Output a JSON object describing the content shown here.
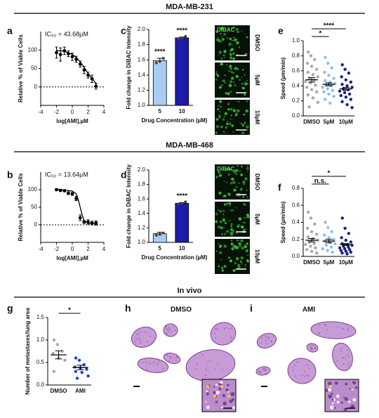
{
  "figure": {
    "sections": [
      "MDA-MB-231",
      "MDA-MB-468",
      "In vivo"
    ],
    "histology": [
      {
        "panel": "h",
        "title": "DMSO"
      },
      {
        "panel": "i",
        "title": "AMI"
      }
    ]
  },
  "chart_data": [
    {
      "panel": "a",
      "type": "dose",
      "annotation": "IC₅₀ = 43.68µM",
      "x_label": "log[AMI],µM",
      "y_label": "Relative % of Viable Cells",
      "x": [
        -2,
        -1.5,
        -1,
        -0.5,
        0,
        0.5,
        1,
        1.5,
        2,
        2.5,
        3
      ],
      "values": [
        93,
        88,
        98,
        90,
        82,
        75,
        62,
        46,
        32,
        22,
        2
      ],
      "errors": [
        15,
        18,
        10,
        8,
        10,
        8,
        8,
        10,
        8,
        10,
        8
      ],
      "fit": {
        "x": [
          -2,
          -1,
          0,
          0.5,
          1,
          1.5,
          2,
          2.5,
          3
        ],
        "values": [
          99,
          97,
          88,
          80,
          68,
          53,
          37,
          22,
          10
        ]
      },
      "hline": 0,
      "xlim": [
        -4,
        4
      ],
      "xticks": [
        -4,
        -2,
        0,
        2,
        4
      ],
      "ylim": [
        -50,
        150
      ],
      "yticks": [
        0,
        50,
        100
      ],
      "color": "#000000"
    },
    {
      "panel": "c",
      "type": "bar",
      "x_label": "Drug Concentration (µM)",
      "y_label": "Fold change in DiBAC Intensity",
      "categories": [
        "5",
        "10"
      ],
      "values": [
        1.59,
        1.89
      ],
      "errors": [
        0.03,
        0.01
      ],
      "points": [
        [
          1.56,
          1.58,
          1.62
        ],
        [
          1.88,
          1.89,
          1.91
        ]
      ],
      "colors": [
        "#a9cdf2",
        "#1c1ca8"
      ],
      "annotations": [
        "****",
        "****"
      ],
      "ylim": [
        1.0,
        2.0
      ],
      "yticks": [
        {
          "value": 1.0,
          "label": "1.0"
        },
        1.2,
        1.4,
        1.6,
        1.8,
        {
          "value": 2.0,
          "label": "2.0"
        }
      ],
      "image_label": "DiBAC",
      "image_rows": [
        "DMSO",
        "5µM",
        "10µM"
      ]
    },
    {
      "panel": "e",
      "type": "dots",
      "y_label": "Speed (µm/min)",
      "significance": [
        "*",
        "****"
      ],
      "series": [
        {
          "name": "DMSO",
          "color": "#a8a8a8",
          "mean": 0.48,
          "sem": 0.03,
          "values": [
            0.85,
            0.8,
            0.75,
            0.7,
            0.66,
            0.62,
            0.58,
            0.55,
            0.52,
            0.5,
            0.48,
            0.46,
            0.44,
            0.41,
            0.38,
            0.35,
            0.32,
            0.28,
            0.24,
            0.18,
            0.12
          ]
        },
        {
          "name": "5µM",
          "color": "#8fbde8",
          "mean": 0.42,
          "sem": 0.02,
          "values": [
            0.78,
            0.7,
            0.64,
            0.58,
            0.54,
            0.5,
            0.47,
            0.45,
            0.43,
            0.41,
            0.4,
            0.38,
            0.36,
            0.34,
            0.32,
            0.29,
            0.26,
            0.22,
            0.17
          ]
        },
        {
          "name": "10µM",
          "color": "#1a237e",
          "mean": 0.36,
          "sem": 0.02,
          "values": [
            0.68,
            0.62,
            0.57,
            0.52,
            0.48,
            0.45,
            0.42,
            0.4,
            0.38,
            0.36,
            0.35,
            0.33,
            0.31,
            0.29,
            0.27,
            0.25,
            0.22,
            0.19,
            0.15,
            0.11
          ]
        }
      ],
      "ylim": [
        0,
        1.0
      ],
      "yticks": [
        {
          "value": 0,
          "label": "0.0"
        },
        0.2,
        0.4,
        0.6,
        0.8,
        {
          "value": 1.0,
          "label": "1.0"
        }
      ]
    },
    {
      "panel": "b",
      "type": "dose",
      "annotation": "IC₅₀ = 13.64µM",
      "x_label": "log[AMI],µM",
      "y_label": "Relative % of Viable Cells",
      "x": [
        -2,
        -1.5,
        -1,
        -0.5,
        0,
        0.5,
        1,
        1.5,
        2,
        2.5,
        3
      ],
      "values": [
        100,
        98,
        97,
        90,
        88,
        75,
        20,
        8,
        8,
        5,
        5
      ],
      "errors": [
        3,
        3,
        3,
        4,
        4,
        6,
        8,
        4,
        6,
        5,
        6
      ],
      "fit": {
        "x": [
          -2,
          -1,
          0,
          0.5,
          0.75,
          1,
          1.25,
          1.5,
          2,
          3
        ],
        "values": [
          100,
          99,
          96,
          88,
          72,
          50,
          28,
          12,
          5,
          4
        ]
      },
      "hline": 0,
      "xlim": [
        -4,
        4
      ],
      "xticks": [
        -4,
        -2,
        0,
        2,
        4
      ],
      "ylim": [
        -50,
        150
      ],
      "yticks": [
        0,
        50,
        100
      ],
      "color": "#000000"
    },
    {
      "panel": "d",
      "type": "bar",
      "x_label": "Drug Concentration (µM)",
      "y_label": "Fold change in DiBAC Intensity",
      "categories": [
        "5",
        "10"
      ],
      "values": [
        1.12,
        1.54
      ],
      "errors": [
        0.02,
        0.01
      ],
      "points": [
        [
          1.1,
          1.11,
          1.13
        ],
        [
          1.53,
          1.54,
          1.56
        ]
      ],
      "colors": [
        "#a9cdf2",
        "#1c1ca8"
      ],
      "annotations": [
        null,
        "****"
      ],
      "ylim": [
        1.0,
        2.0
      ],
      "yticks": [
        {
          "value": 1.0,
          "label": "1.0"
        },
        1.2,
        1.4,
        1.6,
        1.8,
        {
          "value": 2.0,
          "label": "2.0"
        }
      ],
      "image_label": "DiBAC",
      "image_rows": [
        "DMSO",
        "5µM",
        "10µM"
      ]
    },
    {
      "panel": "f",
      "type": "dots",
      "y_label": "Speed (µm/min)",
      "significance": [
        "n.s.",
        "*"
      ],
      "series": [
        {
          "name": "DMSO",
          "color": "#a8a8a8",
          "mean": 0.19,
          "sem": 0.02,
          "values": [
            0.52,
            0.45,
            0.38,
            0.33,
            0.29,
            0.26,
            0.23,
            0.21,
            0.19,
            0.17,
            0.15,
            0.14,
            0.12,
            0.1,
            0.08,
            0.06,
            0.04
          ]
        },
        {
          "name": "5µM",
          "color": "#8fbde8",
          "mean": 0.18,
          "sem": 0.02,
          "values": [
            0.4,
            0.34,
            0.29,
            0.25,
            0.22,
            0.2,
            0.18,
            0.16,
            0.15,
            0.13,
            0.11,
            0.09,
            0.07,
            0.05
          ]
        },
        {
          "name": "10µM",
          "color": "#1a237e",
          "mean": 0.14,
          "sem": 0.01,
          "values": [
            0.45,
            0.33,
            0.27,
            0.22,
            0.19,
            0.17,
            0.15,
            0.14,
            0.13,
            0.12,
            0.11,
            0.1,
            0.09,
            0.08,
            0.07,
            0.06,
            0.05,
            0.04,
            0.03
          ]
        }
      ],
      "ylim": [
        0,
        0.8
      ],
      "yticks": [
        {
          "value": 0,
          "label": "0.0"
        },
        0.2,
        0.4,
        0.6,
        0.8
      ]
    },
    {
      "panel": "g",
      "type": "dots",
      "y_label": "Number of metastases/lung area",
      "significance": [
        "*"
      ],
      "series": [
        {
          "name": "DMSO",
          "color": "#a8a8a8",
          "mean": 0.67,
          "sem": 0.09,
          "values": [
            1.0,
            0.9,
            0.75,
            0.7,
            0.6,
            0.55,
            0.3
          ]
        },
        {
          "name": "AMI",
          "color": "#1f3fd6",
          "mean": 0.39,
          "sem": 0.05,
          "values": [
            0.6,
            0.55,
            0.45,
            0.4,
            0.38,
            0.35,
            0.3,
            0.28,
            0.2,
            0.15
          ]
        }
      ],
      "ylim": [
        0,
        1.5
      ],
      "yticks": [
        {
          "value": 0,
          "label": "0.0"
        },
        0.5,
        {
          "value": 1.0,
          "label": "1.0"
        },
        1.5
      ]
    }
  ]
}
